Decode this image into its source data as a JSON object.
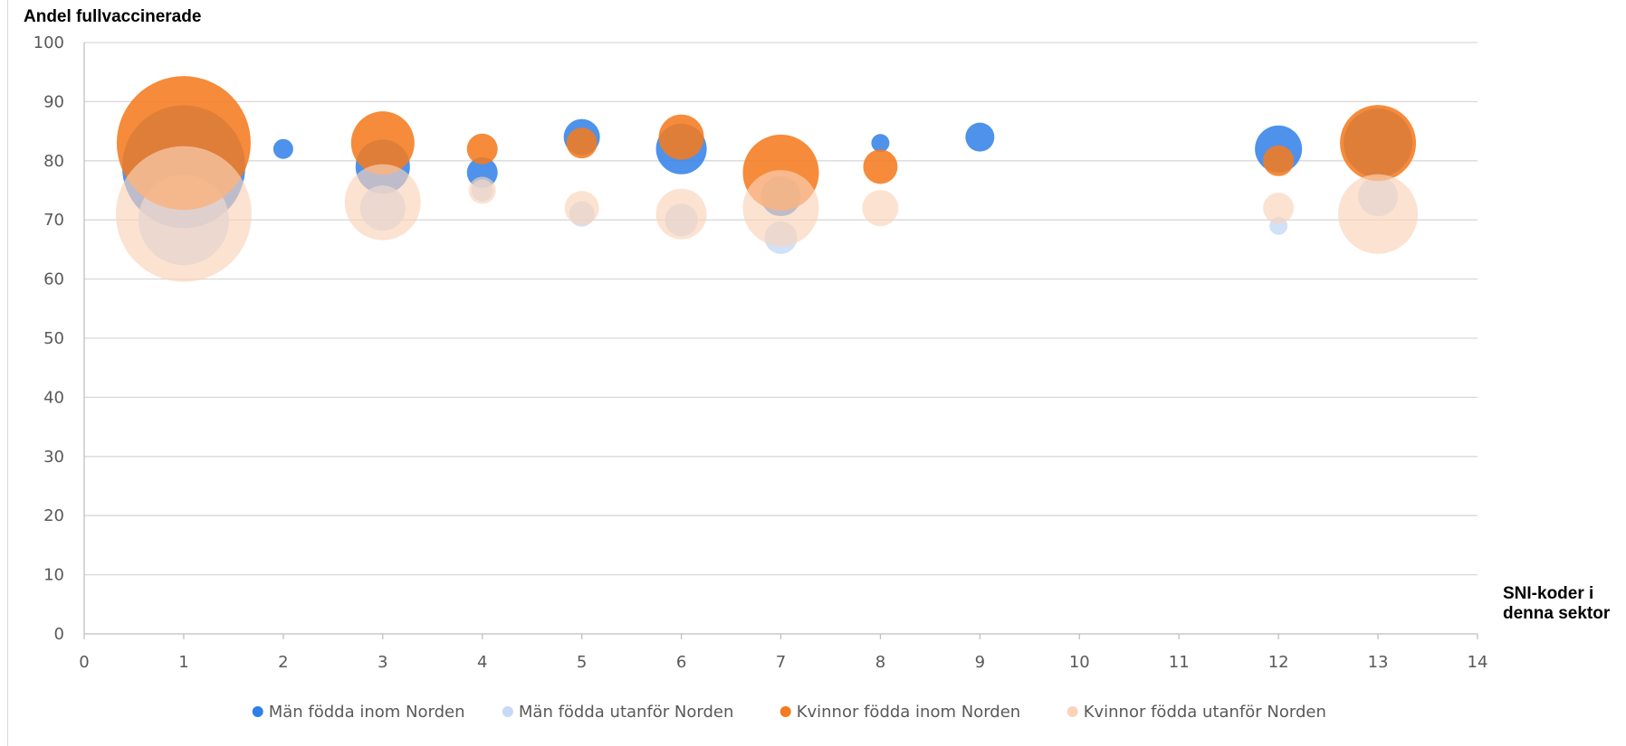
{
  "chart_data": {
    "type": "bubble",
    "title": "",
    "ylabel": "Andel fullvaccinerade",
    "xlabel": "SNI-koder i denna sektor",
    "xlabel_lines": [
      "SNI-koder i",
      "denna sektor"
    ],
    "xlim": [
      0,
      14
    ],
    "ylim": [
      0,
      100
    ],
    "xticks": [
      0,
      1,
      2,
      3,
      4,
      5,
      6,
      7,
      8,
      9,
      10,
      11,
      12,
      13,
      14
    ],
    "yticks": [
      0,
      10,
      20,
      30,
      40,
      50,
      60,
      70,
      80,
      90,
      100
    ],
    "grid": "horizontal",
    "legend_position": "bottom",
    "series": [
      {
        "name": "Män födda inom Norden",
        "color": "#2f7fe8",
        "opacity": 0.85,
        "points": [
          {
            "x": 1,
            "y": 79,
            "r": 68
          },
          {
            "x": 2,
            "y": 82,
            "r": 11
          },
          {
            "x": 3,
            "y": 79,
            "r": 30
          },
          {
            "x": 4,
            "y": 78,
            "r": 17
          },
          {
            "x": 5,
            "y": 84,
            "r": 20
          },
          {
            "x": 6,
            "y": 82,
            "r": 28
          },
          {
            "x": 7,
            "y": 74,
            "r": 22
          },
          {
            "x": 8,
            "y": 83,
            "r": 10
          },
          {
            "x": 9,
            "y": 84,
            "r": 16
          },
          {
            "x": 12,
            "y": 82,
            "r": 26
          },
          {
            "x": 13,
            "y": 83,
            "r": 38
          }
        ]
      },
      {
        "name": "Män födda utanför Norden",
        "color": "#c6d9f5",
        "opacity": 0.8,
        "points": [
          {
            "x": 1,
            "y": 70,
            "r": 50
          },
          {
            "x": 3,
            "y": 72,
            "r": 25
          },
          {
            "x": 4,
            "y": 75,
            "r": 12
          },
          {
            "x": 5,
            "y": 71,
            "r": 14
          },
          {
            "x": 6,
            "y": 70,
            "r": 18
          },
          {
            "x": 7,
            "y": 67,
            "r": 18
          },
          {
            "x": 12,
            "y": 69,
            "r": 10
          },
          {
            "x": 13,
            "y": 74,
            "r": 22
          }
        ]
      },
      {
        "name": "Kvinnor födda inom Norden",
        "color": "#f47b20",
        "opacity": 0.88,
        "points": [
          {
            "x": 1,
            "y": 83,
            "r": 74
          },
          {
            "x": 3,
            "y": 83,
            "r": 35
          },
          {
            "x": 4,
            "y": 82,
            "r": 17
          },
          {
            "x": 5,
            "y": 83,
            "r": 17
          },
          {
            "x": 6,
            "y": 84,
            "r": 25
          },
          {
            "x": 7,
            "y": 78,
            "r": 42
          },
          {
            "x": 8,
            "y": 79,
            "r": 19
          },
          {
            "x": 12,
            "y": 80,
            "r": 17
          },
          {
            "x": 13,
            "y": 83,
            "r": 42
          }
        ]
      },
      {
        "name": "Kvinnor födda utanför Norden",
        "color": "#fbd3b8",
        "opacity": 0.65,
        "points": [
          {
            "x": 1,
            "y": 71,
            "r": 75
          },
          {
            "x": 3,
            "y": 73,
            "r": 42
          },
          {
            "x": 4,
            "y": 75,
            "r": 15
          },
          {
            "x": 5,
            "y": 72,
            "r": 19
          },
          {
            "x": 6,
            "y": 71,
            "r": 28
          },
          {
            "x": 7,
            "y": 72,
            "r": 42
          },
          {
            "x": 8,
            "y": 72,
            "r": 20
          },
          {
            "x": 12,
            "y": 72,
            "r": 17
          },
          {
            "x": 13,
            "y": 71,
            "r": 44
          }
        ]
      }
    ]
  }
}
